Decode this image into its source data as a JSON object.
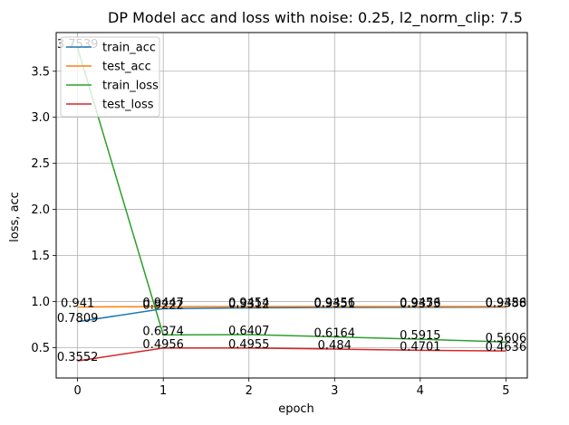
{
  "chart_data": {
    "type": "line",
    "title": "DP Model acc and loss with noise: 0.25, l2_norm_clip: 7.5",
    "xlabel": "epoch",
    "ylabel": "loss, acc",
    "x": [
      0,
      1,
      2,
      3,
      4,
      5
    ],
    "xlim": [
      -0.25,
      5.25
    ],
    "ylim": [
      0.17,
      3.92
    ],
    "x_ticks": [
      "0",
      "1",
      "2",
      "3",
      "4",
      "5"
    ],
    "y_ticks": [
      "0.5",
      "1.0",
      "1.5",
      "2.0",
      "2.5",
      "3.0",
      "3.5"
    ],
    "grid": true,
    "legend_position": "upper-left",
    "series": [
      {
        "name": "train_acc",
        "color": "#1f77b4",
        "values": [
          0.7809,
          0.9222,
          0.9312,
          0.9351,
          0.9373,
          0.9388
        ],
        "labels": [
          "0.7809",
          "0.9222",
          "0.9312",
          "0.9351",
          "0.9373",
          "0.9388"
        ]
      },
      {
        "name": "test_acc",
        "color": "#ff7f0e",
        "values": [
          0.941,
          0.9447,
          0.9454,
          0.9456,
          0.9456,
          0.9456
        ],
        "labels": [
          "0.941",
          "0.9447",
          "0.9454",
          "0.9456",
          "0.9456",
          "0.9456"
        ]
      },
      {
        "name": "train_loss",
        "color": "#2ca02c",
        "values": [
          3.7539,
          0.6374,
          0.6407,
          0.6164,
          0.5915,
          0.5606
        ],
        "labels": [
          "3.7539",
          "0.6374",
          "0.6407",
          "0.6164",
          "0.5915",
          "0.5606"
        ]
      },
      {
        "name": "test_loss",
        "color": "#d62728",
        "values": [
          0.3552,
          0.4956,
          0.4955,
          0.484,
          0.4701,
          0.4636
        ],
        "labels": [
          "0.3552",
          "0.4956",
          "0.4955",
          "0.484",
          "0.4701",
          "0.4636"
        ]
      }
    ]
  }
}
